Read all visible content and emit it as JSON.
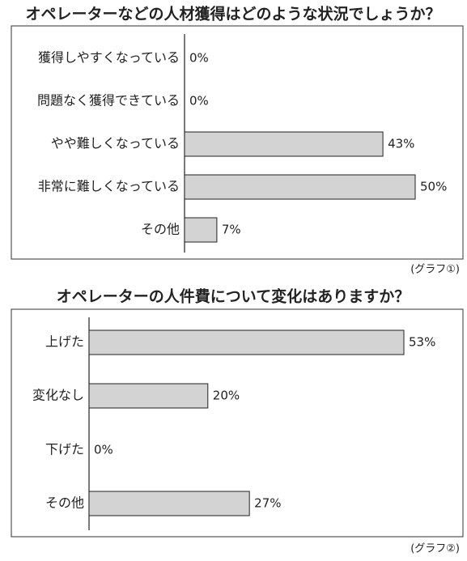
{
  "chart_data": [
    {
      "type": "bar",
      "orientation": "horizontal",
      "title": "オペレーターなどの人材獲得はどのような状況でしょうか？",
      "categories": [
        "獲得しやすくなっている",
        "問題なく獲得できている",
        "やや難しくなっている",
        "非常に難しくなっている",
        "その他"
      ],
      "values": [
        0,
        0,
        43,
        50,
        7
      ],
      "value_labels": [
        "0%",
        "0%",
        "43%",
        "50%",
        "7%"
      ],
      "color": "#d3d3d3",
      "caption": "(グラフ①)"
    },
    {
      "type": "bar",
      "orientation": "horizontal",
      "title": "オペレーターの人件費について変化はありますか？",
      "categories": [
        "上げた",
        "変化なし",
        "下げた",
        "その他"
      ],
      "values": [
        53,
        20,
        0,
        27
      ],
      "value_labels": [
        "53%",
        "20%",
        "0%",
        "27%"
      ],
      "color": "#d3d3d3",
      "caption": "(グラフ②)"
    }
  ]
}
